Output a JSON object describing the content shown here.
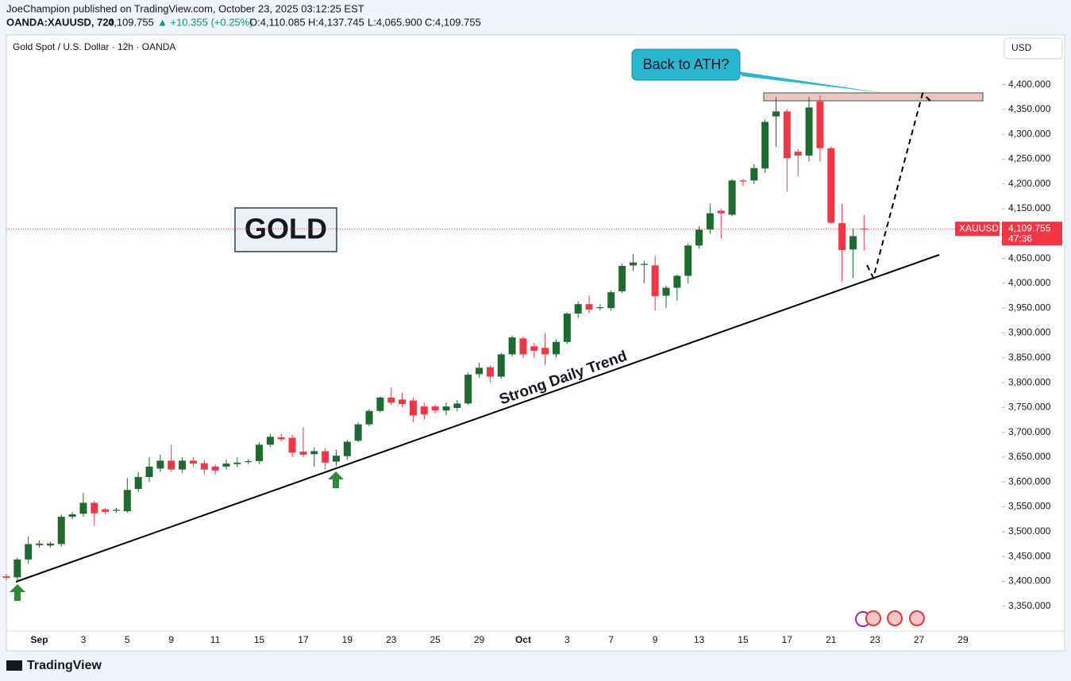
{
  "header": {
    "published": "JoeChampion published on TradingView.com, October 23, 2025 03:12:25 EST",
    "symbol": "OANDA:XAUUSD, 720",
    "last": "4,109.755",
    "change": "▲ +10.355 (+0.25%)",
    "ohlc": [
      "O:4,110.085",
      "H:4,137.745",
      "L:4,065.900",
      "C:4,109.755"
    ]
  },
  "footer": {
    "brand": "TradingView"
  },
  "chart_data": {
    "type": "candlestick",
    "title": "Gold Spot / U.S. Dollar · 12h · OANDA",
    "currency": "USD",
    "up_color": "#1e6b30",
    "down_color": "#f23645",
    "grid": false,
    "categories": [
      null,
      null,
      null,
      "Sep",
      null,
      null,
      null,
      "3",
      null,
      null,
      null,
      "5",
      null,
      null,
      null,
      "9",
      null,
      null,
      null,
      "11",
      null,
      null,
      null,
      "15",
      null,
      null,
      null,
      "17",
      null,
      null,
      null,
      "19",
      null,
      null,
      null,
      "23",
      null,
      null,
      null,
      "25",
      null,
      null,
      null,
      "29",
      null,
      null,
      null,
      "Oct",
      null,
      null,
      null,
      "3",
      null,
      null,
      null,
      "7",
      null,
      null,
      null,
      "9",
      null,
      null,
      null,
      "13",
      null,
      null,
      null,
      "15",
      null,
      null,
      null,
      "17",
      null,
      null,
      null,
      "21",
      null,
      null,
      null,
      "23",
      null,
      null,
      null,
      "27",
      null,
      null,
      null,
      "29",
      null
    ],
    "open": [
      3410,
      3408,
      3444,
      3473,
      3472,
      3475,
      3530,
      3536,
      3558,
      3545,
      3542,
      3541,
      3586,
      3610,
      3627,
      3643,
      3625,
      3643,
      3638,
      3631,
      3631,
      3636,
      3640,
      3642,
      3675,
      3690,
      3689,
      3661,
      3656,
      3662,
      3641,
      3652,
      3683,
      3716,
      3743,
      3770,
      3766,
      3764,
      3752,
      3752,
      3744,
      3749,
      3758,
      3817,
      3831,
      3812,
      3857,
      3889,
      3873,
      3870,
      3857,
      3882,
      3939,
      3958,
      3950,
      3950,
      3984,
      4036,
      4037,
      4036,
      3975,
      3991,
      4015,
      4076,
      4108,
      4146,
      4138,
      4207,
      4207,
      4231,
      4336,
      4346,
      4265,
      4257,
      4366,
      4272,
      4121,
      4068,
      4110.085,
      null,
      null,
      null,
      null,
      null,
      null,
      null,
      null,
      null,
      null
    ],
    "high": [
      3415,
      3448,
      3490,
      3482,
      3480,
      3535,
      3540,
      3578,
      3562,
      3548,
      3548,
      3608,
      3620,
      3650,
      3655,
      3675,
      3650,
      3650,
      3645,
      3635,
      3645,
      3650,
      3646,
      3680,
      3697,
      3697,
      3695,
      3710,
      3670,
      3668,
      3665,
      3685,
      3720,
      3747,
      3772,
      3790,
      3780,
      3770,
      3760,
      3756,
      3760,
      3765,
      3820,
      3840,
      3835,
      3860,
      3895,
      3893,
      3880,
      3900,
      3887,
      3941,
      3964,
      3975,
      3958,
      3986,
      4040,
      4059,
      4045,
      4055,
      3995,
      4018,
      4080,
      4115,
      4160,
      4150,
      4210,
      4210,
      4240,
      4330,
      4375,
      4350,
      4270,
      4375,
      4378,
      4275,
      4160,
      4110,
      4137.745,
      null,
      null,
      null,
      null,
      null,
      null,
      null,
      null,
      null,
      null
    ],
    "low": [
      3402,
      3400,
      3435,
      3468,
      3468,
      3470,
      3525,
      3530,
      3512,
      3535,
      3538,
      3538,
      3580,
      3600,
      3620,
      3620,
      3618,
      3630,
      3615,
      3615,
      3625,
      3630,
      3636,
      3636,
      3670,
      3682,
      3650,
      3650,
      3630,
      3625,
      3632,
      3645,
      3680,
      3712,
      3740,
      3755,
      3750,
      3720,
      3725,
      3738,
      3735,
      3742,
      3755,
      3810,
      3800,
      3808,
      3852,
      3850,
      3850,
      3835,
      3850,
      3878,
      3930,
      3940,
      3945,
      3945,
      3980,
      4025,
      4000,
      3945,
      3950,
      3965,
      4000,
      4070,
      4100,
      4090,
      4135,
      4195,
      4200,
      4222,
      4275,
      4185,
      4215,
      4245,
      4245,
      4120,
      4003,
      4010,
      4065.9,
      null,
      null,
      null,
      null,
      null,
      null,
      null,
      null,
      null,
      null
    ],
    "close": [
      3407,
      3444,
      3475,
      3476,
      3476,
      3530,
      3535,
      3558,
      3537,
      3540,
      3544,
      3584,
      3610,
      3631,
      3643,
      3625,
      3643,
      3637,
      3625,
      3623,
      3637,
      3639,
      3642,
      3675,
      3691,
      3686,
      3659,
      3655,
      3662,
      3639,
      3653,
      3681,
      3716,
      3743,
      3770,
      3760,
      3757,
      3734,
      3736,
      3744,
      3752,
      3758,
      3816,
      3830,
      3812,
      3857,
      3891,
      3857,
      3864,
      3857,
      3882,
      3939,
      3958,
      3947,
      3952,
      3982,
      4035,
      4042,
      4039,
      3974,
      3991,
      4015,
      4076,
      4108,
      4141,
      4141,
      4207,
      4205,
      4232,
      4325,
      4346,
      4252,
      4257,
      4354,
      4272,
      4122,
      4067,
      4095,
      4109.755,
      null,
      null,
      null,
      null,
      null,
      null,
      null,
      null,
      null,
      null
    ],
    "ylim": [
      3300,
      4500
    ],
    "yticks": [
      {
        "value": 3350,
        "label": "3,350.000"
      },
      {
        "value": 3400,
        "label": "3,400.000"
      },
      {
        "value": 3450,
        "label": "3,450.000"
      },
      {
        "value": 3500,
        "label": "3,500.000"
      },
      {
        "value": 3550,
        "label": "3,550.000"
      },
      {
        "value": 3600,
        "label": "3,600.000"
      },
      {
        "value": 3650,
        "label": "3,650.000"
      },
      {
        "value": 3700,
        "label": "3,700.000"
      },
      {
        "value": 3750,
        "label": "3,750.000"
      },
      {
        "value": 3800,
        "label": "3,800.000"
      },
      {
        "value": 3850,
        "label": "3,850.000"
      },
      {
        "value": 3900,
        "label": "3,900.000"
      },
      {
        "value": 3950,
        "label": "3,950.000"
      },
      {
        "value": 4000,
        "label": "4,000.000"
      },
      {
        "value": 4050,
        "label": "4,050.000"
      },
      {
        "value": 4100,
        "label": "4,100.000"
      },
      {
        "value": 4150,
        "label": "4,150.000"
      },
      {
        "value": 4200,
        "label": "4,200.000"
      },
      {
        "value": 4250,
        "label": "4,250.000"
      },
      {
        "value": 4300,
        "label": "4,300.000"
      },
      {
        "value": 4350,
        "label": "4,350.000"
      },
      {
        "value": 4400,
        "label": "4,400.000"
      }
    ],
    "last_label": {
      "symbol": "XAUUSD",
      "price": "4,109.755",
      "countdown": "47:36"
    },
    "annotations": {
      "box": "GOLD",
      "callout": "Back to ATH?",
      "trend": "Strong Daily Trend"
    }
  }
}
